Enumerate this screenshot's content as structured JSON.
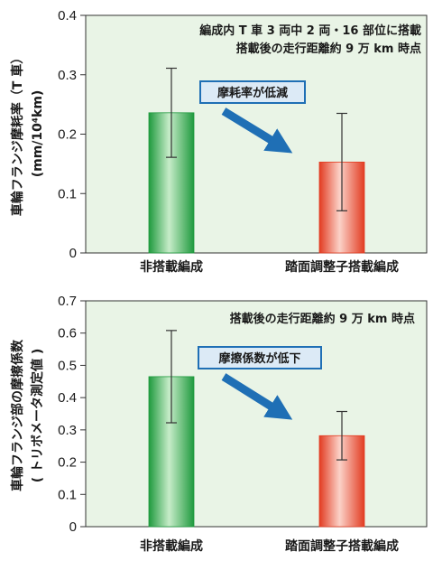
{
  "colors": {
    "plot_bg": "#e9f4e6",
    "bar_green": "#2da34a",
    "bar_red": "#e8452c",
    "arrow": "#1f6fb5",
    "callout_border": "#1f6fb5",
    "callout_fill": "#dceaf6"
  },
  "chart_data": [
    {
      "type": "bar",
      "categories": [
        "非搭載編成",
        "踏面調整子搭載編成"
      ],
      "values": [
        0.236,
        0.153
      ],
      "error": [
        0.075,
        0.082
      ],
      "ylabel": "車輪フランジ摩耗率（T 車）",
      "yunit": "(mm/10⁴km)",
      "ylim": [
        0,
        0.4
      ],
      "yticks": [
        "0",
        "0.1",
        "0.2",
        "0.3",
        "0.4"
      ],
      "annotations": [
        "編成内 T 車 3 両中 2 両・16 部位に搭載",
        "搭載後の走行距離約 9 万 km 時点"
      ],
      "callout": "摩耗率が低減"
    },
    {
      "type": "bar",
      "categories": [
        "非搭載編成",
        "踏面調整子搭載編成"
      ],
      "values": [
        0.465,
        0.282
      ],
      "error": [
        0.143,
        0.075
      ],
      "ylabel": "車輪フランジ部の摩擦係数",
      "yunit": "( トリボメータ測定値 )",
      "ylim": [
        0,
        0.7
      ],
      "yticks": [
        "0",
        "0.1",
        "0.2",
        "0.3",
        "0.4",
        "0.5",
        "0.6",
        "0.7"
      ],
      "annotations": [
        "搭載後の走行距離約 9 万 km 時点"
      ],
      "callout": "摩擦係数が低下"
    }
  ]
}
